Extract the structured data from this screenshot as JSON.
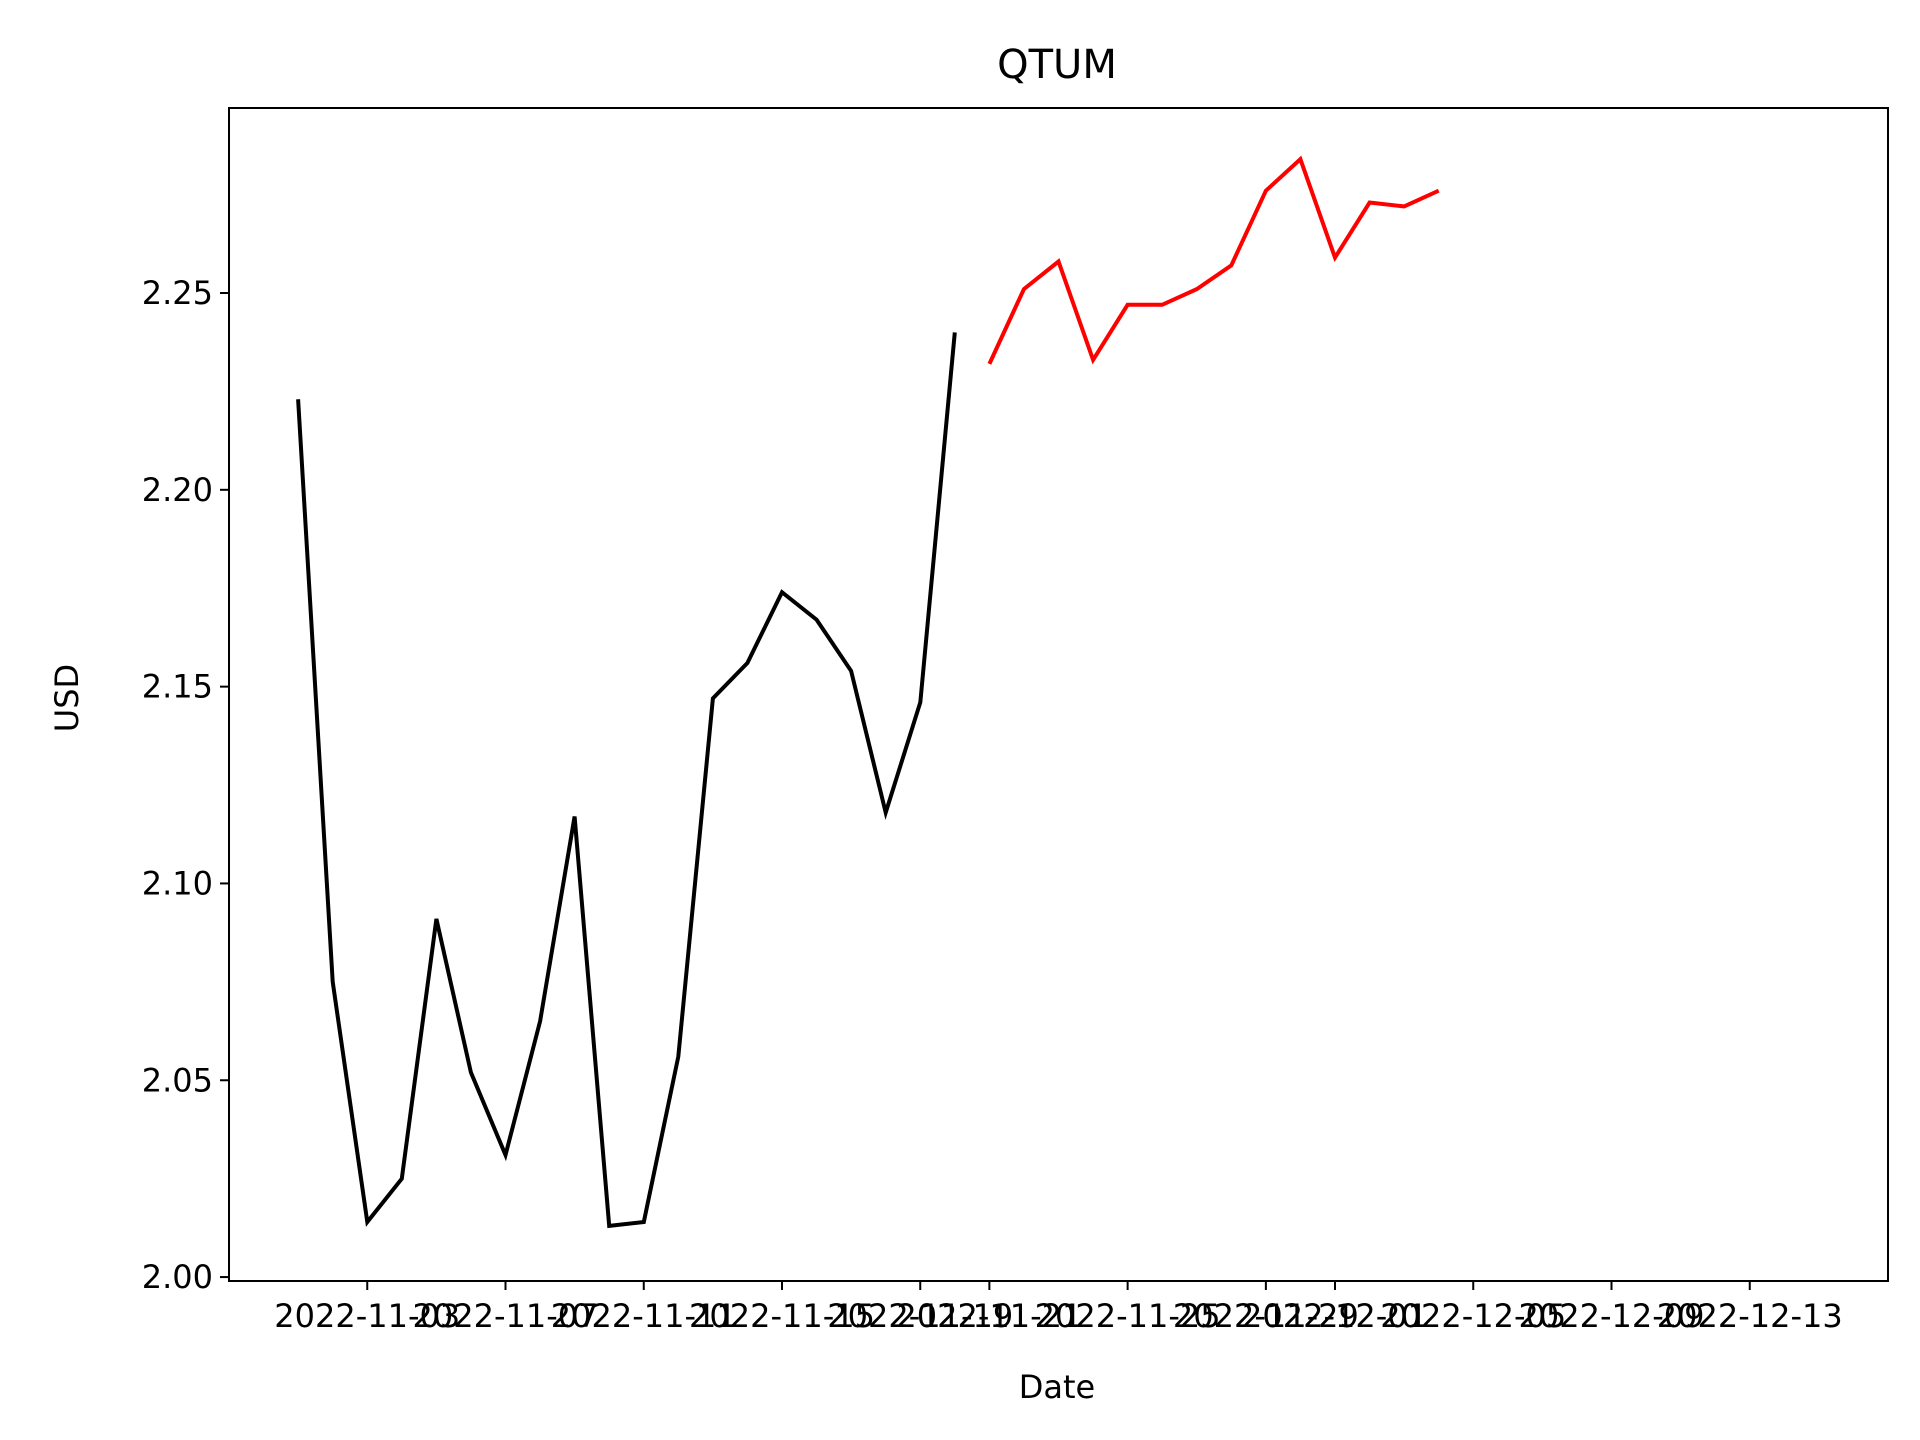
{
  "chart_data": {
    "type": "line",
    "title": "QTUM",
    "xlabel": "Date",
    "ylabel": "USD",
    "xlim": [
      "2022-10-30",
      "2022-12-17"
    ],
    "ylim": [
      1.999,
      2.297
    ],
    "grid": false,
    "x_ticks": [
      "2022-11-03",
      "2022-11-07",
      "2022-11-11",
      "2022-11-15",
      "2022-11-19",
      "2022-11-21",
      "2022-11-25",
      "2022-11-29",
      "2022-12-01",
      "2022-12-05",
      "2022-12-09",
      "2022-12-13"
    ],
    "x_tick_labels": [
      "2022-11-03",
      "2022-11-07",
      "2022-11-11",
      "2022-11-15",
      "2022-11-19",
      "2022-11-21",
      "2022-11-25",
      "2022-11-29",
      "2022-12-01",
      "2022-12-05",
      "2022-12-09",
      "2022-12-13"
    ],
    "y_ticks": [
      2.0,
      2.05,
      2.1,
      2.15,
      2.2,
      2.25
    ],
    "y_tick_labels": [
      "2.00",
      "2.05",
      "2.10",
      "2.15",
      "2.20",
      "2.25"
    ],
    "series": [
      {
        "color": "#000000",
        "x": [
          "2022-11-01",
          "2022-11-02",
          "2022-11-03",
          "2022-11-04",
          "2022-11-05",
          "2022-11-06",
          "2022-11-07",
          "2022-11-08",
          "2022-11-09",
          "2022-11-10",
          "2022-11-11",
          "2022-11-12",
          "2022-11-13",
          "2022-11-14",
          "2022-11-15",
          "2022-11-16",
          "2022-11-17",
          "2022-11-18",
          "2022-11-19",
          "2022-11-20"
        ],
        "values": [
          2.223,
          2.075,
          2.014,
          2.025,
          2.091,
          2.052,
          2.031,
          2.065,
          2.117,
          2.013,
          2.014,
          2.056,
          2.147,
          2.156,
          2.174,
          2.167,
          2.154,
          2.118,
          2.146,
          2.24
        ]
      },
      {
        "color": "#ff0000",
        "x": [
          "2022-11-21",
          "2022-11-22",
          "2022-11-23",
          "2022-11-24",
          "2022-11-25",
          "2022-11-26",
          "2022-11-27",
          "2022-11-28",
          "2022-11-29",
          "2022-11-30",
          "2022-12-01",
          "2022-12-02",
          "2022-12-03",
          "2022-12-04"
        ],
        "values": [
          2.232,
          2.251,
          2.258,
          2.233,
          2.247,
          2.247,
          2.251,
          2.257,
          2.276,
          2.284,
          2.259,
          2.273,
          2.272,
          2.276
        ]
      }
    ]
  }
}
